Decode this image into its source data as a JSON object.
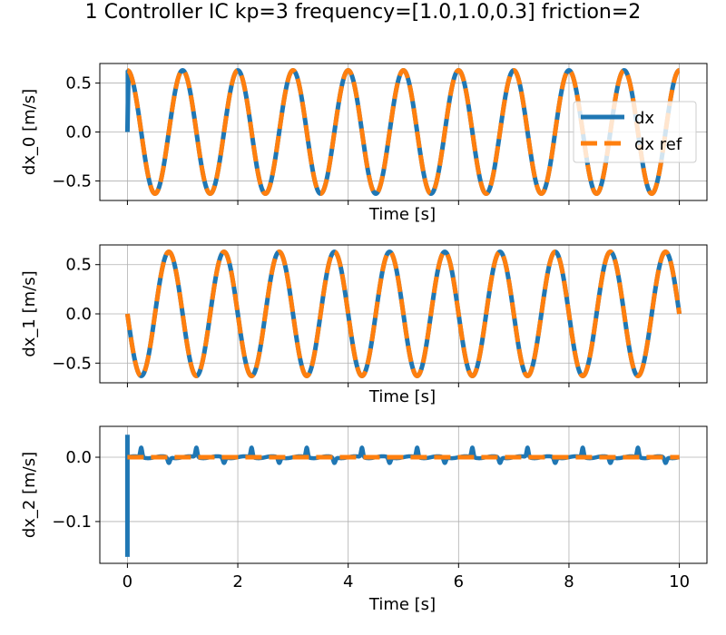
{
  "title": "1 Controller IC kp=3 frequency=[1.0,1.0,0.3] friction=2",
  "colors": {
    "dx": "#1f77b4",
    "dx_ref": "#ff7f0e",
    "grid": "#b0b0b0"
  },
  "chart_data": [
    {
      "type": "line",
      "xlabel": "Time [s]",
      "ylabel": "dx_0 [m/s]",
      "xlim": [
        -0.5,
        10.5
      ],
      "ylim": [
        -0.7,
        0.7
      ],
      "xticks": [
        0,
        2,
        4,
        6,
        8,
        10
      ],
      "yticks": [
        0.5,
        0.0,
        -0.5
      ],
      "ytick_labels": [
        "0.5",
        "0.0",
        "−0.5"
      ],
      "grid": true,
      "legend": {
        "placement": "right",
        "entries": [
          "dx",
          "dx ref"
        ]
      },
      "series": [
        {
          "name": "dx",
          "amplitude": 0.63,
          "frequency_hz": 1.0,
          "phase": "cos",
          "initial_value": 0.0
        },
        {
          "name": "dx ref",
          "amplitude": 0.63,
          "frequency_hz": 1.0,
          "phase": "cos"
        }
      ],
      "x_range": [
        0,
        10
      ]
    },
    {
      "type": "line",
      "xlabel": "Time [s]",
      "ylabel": "dx_1 [m/s]",
      "xlim": [
        -0.5,
        10.5
      ],
      "ylim": [
        -0.7,
        0.7
      ],
      "xticks": [
        0,
        2,
        4,
        6,
        8,
        10
      ],
      "yticks": [
        0.5,
        0.0,
        -0.5
      ],
      "ytick_labels": [
        "0.5",
        "0.0",
        "−0.5"
      ],
      "grid": true,
      "series": [
        {
          "name": "dx",
          "amplitude": 0.63,
          "frequency_hz": 1.0,
          "phase": "-sin"
        },
        {
          "name": "dx ref",
          "amplitude": 0.63,
          "frequency_hz": 1.0,
          "phase": "-sin"
        }
      ],
      "x_range": [
        0,
        10
      ]
    },
    {
      "type": "line",
      "xlabel": "Time [s]",
      "ylabel": "dx_2 [m/s]",
      "xlim": [
        -0.5,
        10.5
      ],
      "ylim": [
        -0.165,
        0.048
      ],
      "xticks": [
        0,
        2,
        4,
        6,
        8,
        10
      ],
      "xtick_labels": [
        "0",
        "2",
        "4",
        "6",
        "8",
        "10"
      ],
      "yticks": [
        0.0,
        -0.1
      ],
      "ytick_labels": [
        "0.0",
        "−0.1"
      ],
      "grid": true,
      "series": [
        {
          "name": "dx",
          "initial_spike": [
            0.035,
            -0.155
          ],
          "periodic_spikes_at": [
            0.25,
            1.25,
            2.25,
            3.25,
            4.25,
            5.25,
            6.25,
            7.25,
            8.25,
            9.25
          ],
          "spike_height": 0.015
        },
        {
          "name": "dx ref",
          "constant": 0.0
        }
      ],
      "x_range": [
        0,
        10
      ]
    }
  ]
}
